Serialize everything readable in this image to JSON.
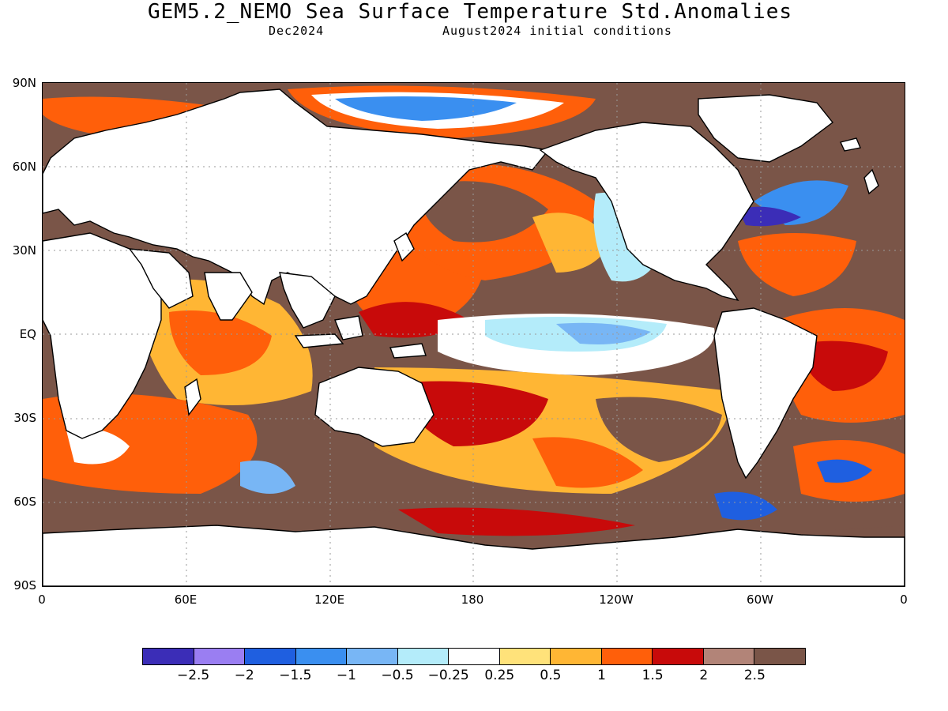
{
  "header": {
    "title": "GEM5.2_NEMO Sea Surface Temperature Std.Anomalies",
    "valid_month": "Dec2024",
    "initial_conditions": "August2024 initial conditions"
  },
  "map": {
    "lat_labels": [
      "90N",
      "60N",
      "30N",
      "EQ",
      "30S",
      "60S",
      "90S"
    ],
    "lon_labels": [
      "0",
      "60E",
      "120E",
      "180",
      "120W",
      "60W",
      "0"
    ],
    "land_color": "#ffffff",
    "coastline_color": "#000000",
    "gridline_style": "dotted"
  },
  "colorbar": {
    "colors": [
      "#3b2db7",
      "#9a7ef2",
      "#1f5fe0",
      "#3a8ff0",
      "#78b6f5",
      "#b4ecfa",
      "#ffffff",
      "#ffe27a",
      "#ffb634",
      "#ff5f0a",
      "#c80a0a",
      "#b28478",
      "#7a5548"
    ],
    "labels": [
      "−2.5",
      "−2",
      "−1.5",
      "−1",
      "−0.5",
      "−0.25",
      "0.25",
      "0.5",
      "1",
      "1.5",
      "2",
      "2.5"
    ]
  }
}
